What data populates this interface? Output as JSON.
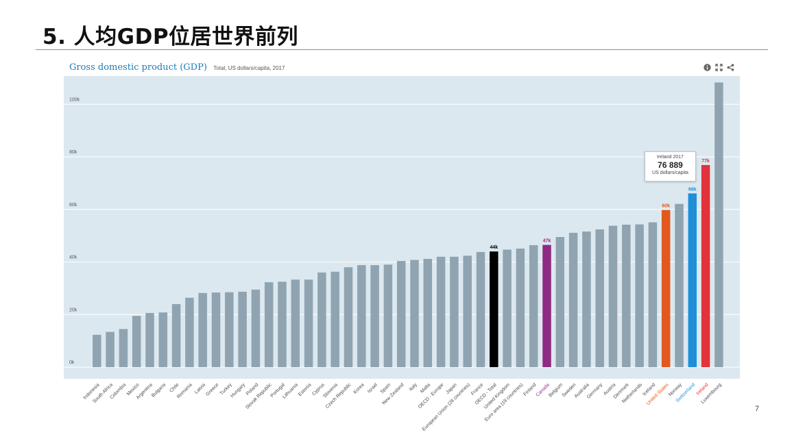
{
  "slide": {
    "title": "5. 人均GDP位居世界前列",
    "page_number": "7"
  },
  "chart_header": {
    "title": "Gross domestic product (GDP)",
    "subtitle": "Total, US dollars/capita, 2017",
    "icons": [
      "info-icon",
      "expand-icon",
      "share-icon"
    ]
  },
  "tooltip": {
    "line1": "Ireland 2017",
    "value": "76 889",
    "line3": "US dollars/capita"
  },
  "colors": {
    "default_bar": "#8fa4b0",
    "oecd": "#000000",
    "canada": "#8e2b84",
    "united_states": "#e3581e",
    "switzerland": "#1f8fd9",
    "ireland": "#e2323b",
    "default_label": "#4a4a4a"
  },
  "chart_data": {
    "type": "bar",
    "title": "Gross domestic product (GDP)",
    "subtitle": "Total, US dollars/capita, 2017",
    "xlabel": "",
    "ylabel": "",
    "ylim": [
      0,
      110000
    ],
    "y_ticks": [
      0,
      20000,
      40000,
      60000,
      80000,
      100000
    ],
    "y_tick_labels": [
      "0k",
      "20k",
      "40k",
      "60k",
      "80k",
      "100k"
    ],
    "grid": true,
    "categories": [
      "Indonesia",
      "South Africa",
      "Colombia",
      "Mexico",
      "Argentina",
      "Bulgaria",
      "Chile",
      "Romania",
      "Latvia",
      "Greece",
      "Turkey",
      "Hungary",
      "Poland",
      "Slovak Republic",
      "Portugal",
      "Lithuania",
      "Estonia",
      "Cyprus",
      "Slovenia",
      "Czech Republic",
      "Korea",
      "Israel",
      "Spain",
      "New Zealand",
      "Italy",
      "Malta",
      "OECD - Europe",
      "Japan",
      "European Union (28 countries)",
      "France",
      "OECD - Total",
      "United Kingdom",
      "Euro area (19 countries)",
      "Finland",
      "Canada",
      "Belgium",
      "Sweden",
      "Australia",
      "Germany",
      "Austria",
      "Denmark",
      "Netherlands",
      "Iceland",
      "United States",
      "Norway",
      "Switzerland",
      "Ireland",
      "Luxembourg"
    ],
    "values": [
      12300,
      13400,
      14500,
      19500,
      20600,
      20800,
      24000,
      26400,
      28200,
      28400,
      28500,
      28700,
      29500,
      32300,
      32500,
      33300,
      33300,
      36000,
      36300,
      38000,
      38800,
      38800,
      39000,
      40400,
      40800,
      41200,
      42000,
      42000,
      42400,
      43800,
      44000,
      44700,
      45100,
      46400,
      46500,
      49500,
      51100,
      51600,
      52400,
      53800,
      54200,
      54300,
      55100,
      59800,
      62100,
      66100,
      76889,
      108300
    ],
    "highlights": [
      {
        "category": "OECD - Total",
        "color_key": "oecd",
        "data_label": "44k"
      },
      {
        "category": "Canada",
        "color_key": "canada",
        "data_label": "47k"
      },
      {
        "category": "United States",
        "color_key": "united_states",
        "data_label": "60k"
      },
      {
        "category": "Switzerland",
        "color_key": "switzerland",
        "data_label": "66k"
      },
      {
        "category": "Ireland",
        "color_key": "ireland",
        "data_label": "77k"
      }
    ]
  }
}
